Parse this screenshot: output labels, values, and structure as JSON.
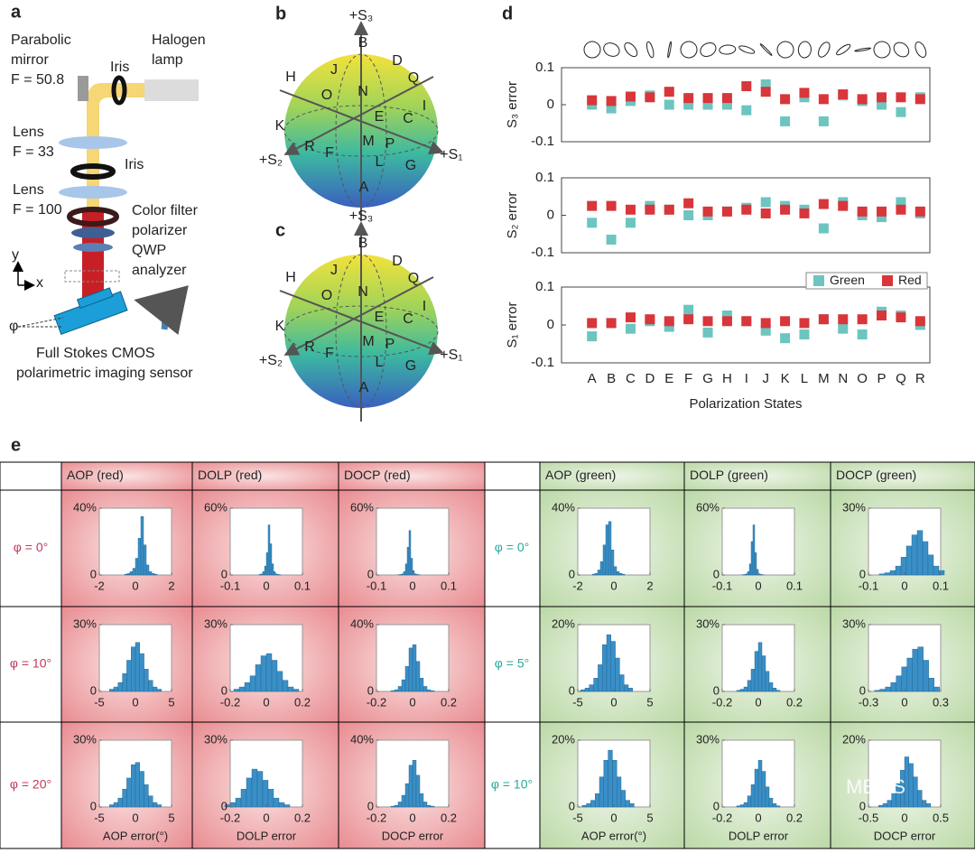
{
  "panels": [
    "a",
    "b",
    "c",
    "d",
    "e"
  ],
  "setup": {
    "labels": [
      "Parabolic",
      "mirror",
      "F = 50.8",
      "Iris",
      "Halogen",
      "lamp",
      "Lens",
      "F = 33",
      "Iris",
      "Lens",
      "F = 100",
      "Color filter",
      "polarizer",
      "QWP",
      "analyzer",
      "y",
      "x",
      "φ",
      "Full Stokes CMOS",
      "polarimetric imaging sensor"
    ]
  },
  "spheres": [
    {
      "labels": [
        "+S₃",
        "+S₂",
        "+S₁",
        "A",
        "B",
        "C",
        "D",
        "E",
        "F",
        "G",
        "H",
        "I",
        "J",
        "K",
        "L",
        "M",
        "N",
        "O",
        "P",
        "Q",
        "R"
      ]
    },
    {
      "labels": [
        "+S₃",
        "+S₂",
        "+S₁",
        "A",
        "B",
        "C",
        "D",
        "E",
        "F",
        "G",
        "H",
        "I",
        "J",
        "K",
        "L",
        "M",
        "N",
        "O",
        "P",
        "Q",
        "R"
      ]
    }
  ],
  "table": {
    "headers": [
      "AOP (red)",
      "DOLP (red)",
      "DOCP (red)",
      "AOP (green)",
      "DOLP (green)",
      "DOCP (green)"
    ],
    "row_labels": [
      "φ = 0°",
      "φ = 10°",
      "φ = 20°",
      "φ = 0°",
      "φ = 5°",
      "φ = 10°"
    ],
    "watermark": "MEMS"
  },
  "chart_data": [
    {
      "type": "scatter",
      "ylabel": "S₃ error",
      "ylim": [
        -0.1,
        0.1
      ],
      "yticks": [
        -0.1,
        0,
        0.1
      ],
      "series": [
        {
          "color": "#6cc5bf",
          "values": [
            0.0,
            -0.01,
            0.01,
            0.025,
            0.0,
            0.0,
            0.0,
            0.0,
            -0.015,
            0.055,
            -0.045,
            0.02,
            -0.045,
            0.025,
            0.01,
            0.0,
            -0.02,
            0.02
          ]
        },
        {
          "color": "#d8363a",
          "values": [
            0.012,
            0.01,
            0.022,
            0.02,
            0.035,
            0.018,
            0.018,
            0.018,
            0.05,
            0.035,
            0.015,
            0.032,
            0.015,
            0.028,
            0.015,
            0.02,
            0.02,
            0.015
          ]
        }
      ]
    },
    {
      "type": "scatter",
      "ylabel": "S₂ error",
      "ylim": [
        -0.1,
        0.1
      ],
      "yticks": [
        -0.1,
        0,
        0.1
      ],
      "series": [
        {
          "color": "#6cc5bf",
          "values": [
            -0.02,
            -0.065,
            -0.02,
            0.025,
            0.015,
            0.0,
            0.0,
            0.01,
            0.02,
            0.035,
            0.025,
            0.015,
            -0.035,
            0.035,
            0.0,
            -0.005,
            0.035,
            0.005
          ]
        },
        {
          "color": "#d8363a",
          "values": [
            0.025,
            0.025,
            0.015,
            0.015,
            0.015,
            0.032,
            0.01,
            0.01,
            0.015,
            0.005,
            0.015,
            0.005,
            0.03,
            0.025,
            0.01,
            0.01,
            0.015,
            0.01
          ]
        }
      ]
    },
    {
      "type": "scatter",
      "ylabel": "S₁ error",
      "xlabel": "Polarization States",
      "ylim": [
        -0.1,
        0.1
      ],
      "yticks": [
        -0.1,
        0,
        0.1
      ],
      "categories": [
        "A",
        "B",
        "C",
        "D",
        "E",
        "F",
        "G",
        "H",
        "I",
        "J",
        "K",
        "L",
        "M",
        "N",
        "O",
        "P",
        "Q",
        "R"
      ],
      "legend": "upper right",
      "series": [
        {
          "name": "Green",
          "color": "#6cc5bf",
          "values": [
            -0.03,
            0.005,
            -0.01,
            0.01,
            -0.005,
            0.04,
            -0.02,
            0.025,
            0.01,
            -0.015,
            -0.035,
            -0.025,
            0.015,
            -0.01,
            -0.025,
            0.035,
            0.025,
            0.0
          ]
        },
        {
          "name": "Red",
          "color": "#d8363a",
          "values": [
            0.005,
            0.005,
            0.02,
            0.015,
            0.01,
            0.015,
            0.01,
            0.01,
            0.01,
            0.005,
            0.01,
            0.005,
            0.015,
            0.015,
            0.015,
            0.025,
            0.02,
            0.01
          ]
        }
      ]
    },
    {
      "type": "histogram",
      "color": "#3a8fc7",
      "bins": [
        -0.6,
        -0.45,
        -0.3,
        -0.15,
        0,
        0.15,
        0.3,
        0.45,
        0.6,
        0.75,
        0.9,
        1.05,
        1.2
      ],
      "values": [
        0.5,
        1,
        2,
        4,
        10,
        22,
        35,
        18,
        6,
        2,
        1,
        0.5
      ],
      "xlim": [
        -2,
        2
      ],
      "xticks": [
        -2,
        0,
        2
      ],
      "ylim": [
        0,
        40
      ],
      "yticks": [
        0,
        {
          "value": 40,
          "label": "40%"
        }
      ]
    },
    {
      "type": "histogram",
      "color": "#3a8fc7",
      "bins": [
        -0.02,
        -0.015,
        -0.01,
        -0.005,
        0,
        0.005,
        0.01,
        0.015,
        0.02,
        0.025,
        0.03,
        0.035,
        0.04
      ],
      "values": [
        0.5,
        1,
        3,
        8,
        20,
        45,
        28,
        10,
        3,
        1,
        0.5,
        0.3
      ],
      "xlim": [
        -0.1,
        0.1
      ],
      "xticks": [
        -0.1,
        0,
        0.1
      ],
      "ylim": [
        0,
        60
      ],
      "yticks": [
        0,
        {
          "value": 60,
          "label": "60%"
        }
      ]
    },
    {
      "type": "histogram",
      "color": "#3a8fc7",
      "bins": [
        -0.04,
        -0.035,
        -0.03,
        -0.025,
        -0.02,
        -0.015,
        -0.01,
        -0.005,
        0,
        0.005,
        0.01,
        0.015,
        0.02
      ],
      "values": [
        0.3,
        0.5,
        1,
        3,
        10,
        25,
        40,
        15,
        4,
        1,
        0.5,
        0.3
      ],
      "xlim": [
        -0.1,
        0.1
      ],
      "xticks": [
        -0.1,
        0,
        0.1
      ],
      "ylim": [
        0,
        60
      ],
      "yticks": [
        0,
        {
          "value": 60,
          "label": "60%"
        }
      ]
    },
    {
      "type": "histogram",
      "color": "#3a8fc7",
      "bins": [
        -3.6,
        -3,
        -2.4,
        -1.8,
        -1.2,
        -0.6,
        0,
        0.6,
        1.2,
        1.8,
        2.4,
        3,
        3.6
      ],
      "values": [
        1,
        2,
        4,
        8,
        14,
        20,
        22,
        17,
        10,
        5,
        2,
        1
      ],
      "xlim": [
        -5,
        5
      ],
      "xticks": [
        -5,
        0,
        5
      ],
      "ylim": [
        0,
        30
      ],
      "yticks": [
        0,
        {
          "value": 30,
          "label": "30%"
        }
      ]
    },
    {
      "type": "histogram",
      "color": "#3a8fc7",
      "bins": [
        -0.18,
        -0.15,
        -0.12,
        -0.09,
        -0.06,
        -0.03,
        0,
        0.03,
        0.06,
        0.09,
        0.12,
        0.15,
        0.18
      ],
      "values": [
        1,
        2,
        4,
        7,
        12,
        16,
        17,
        14,
        9,
        5,
        2,
        1
      ],
      "xlim": [
        -0.2,
        0.2
      ],
      "xticks": [
        -0.2,
        0,
        0.2
      ],
      "ylim": [
        0,
        30
      ],
      "yticks": [
        0,
        {
          "value": 30,
          "label": "30%"
        }
      ]
    },
    {
      "type": "histogram",
      "color": "#3a8fc7",
      "bins": [
        -0.12,
        -0.1,
        -0.08,
        -0.06,
        -0.04,
        -0.02,
        0,
        0.02,
        0.04,
        0.06,
        0.08,
        0.1,
        0.12
      ],
      "values": [
        0.5,
        1,
        3,
        7,
        15,
        26,
        28,
        18,
        8,
        3,
        1,
        0.5
      ],
      "xlim": [
        -0.2,
        0.2
      ],
      "xticks": [
        -0.2,
        0,
        0.2
      ],
      "ylim": [
        0,
        40
      ],
      "yticks": [
        0,
        {
          "value": 40,
          "label": "40%"
        }
      ]
    },
    {
      "type": "histogram",
      "color": "#3a8fc7",
      "xlabel": "AOP error(°)",
      "bins": [
        -3.6,
        -3,
        -2.4,
        -1.8,
        -1.2,
        -0.6,
        0,
        0.6,
        1.2,
        1.8,
        2.4,
        3,
        3.6
      ],
      "values": [
        1,
        2,
        4,
        8,
        13,
        19,
        20,
        16,
        10,
        5,
        2,
        1
      ],
      "xlim": [
        -5,
        5
      ],
      "xticks": [
        -5,
        0,
        5
      ],
      "ylim": [
        0,
        30
      ],
      "yticks": [
        0,
        {
          "value": 30,
          "label": "30%"
        }
      ]
    },
    {
      "type": "histogram",
      "color": "#3a8fc7",
      "xlabel": "DOLP error",
      "bins": [
        -0.23,
        -0.2,
        -0.17,
        -0.14,
        -0.11,
        -0.08,
        -0.05,
        -0.02,
        0.01,
        0.04,
        0.07,
        0.1,
        0.13
      ],
      "values": [
        1,
        2,
        4,
        8,
        13,
        17,
        16,
        12,
        8,
        4,
        2,
        1
      ],
      "xlim": [
        -0.2,
        0.2
      ],
      "xticks": [
        -0.2,
        0,
        0.2
      ],
      "ylim": [
        0,
        30
      ],
      "yticks": [
        0,
        {
          "value": 30,
          "label": "30%"
        }
      ]
    },
    {
      "type": "histogram",
      "color": "#3a8fc7",
      "xlabel": "DOCP error",
      "bins": [
        -0.12,
        -0.1,
        -0.08,
        -0.06,
        -0.04,
        -0.02,
        0,
        0.02,
        0.04,
        0.06,
        0.08,
        0.1,
        0.12
      ],
      "values": [
        0.5,
        1,
        3,
        7,
        14,
        25,
        28,
        19,
        8,
        3,
        1,
        0.5
      ],
      "xlim": [
        -0.2,
        0.2
      ],
      "xticks": [
        -0.2,
        0,
        0.2
      ],
      "ylim": [
        0,
        40
      ],
      "yticks": [
        0,
        {
          "value": 40,
          "label": "40%"
        }
      ]
    },
    {
      "type": "histogram",
      "color": "#3a8fc7",
      "bins": [
        -1.2,
        -1.05,
        -0.9,
        -0.75,
        -0.6,
        -0.45,
        -0.3,
        -0.15,
        0,
        0.15,
        0.3,
        0.45,
        0.6
      ],
      "values": [
        0.5,
        1,
        3,
        8,
        18,
        30,
        32,
        15,
        5,
        2,
        1,
        0.5
      ],
      "xlim": [
        -2,
        2
      ],
      "xticks": [
        -2,
        0,
        2
      ],
      "ylim": [
        0,
        40
      ],
      "yticks": [
        0,
        {
          "value": 40,
          "label": "40%"
        }
      ]
    },
    {
      "type": "histogram",
      "color": "#3a8fc7",
      "bins": [
        -0.045,
        -0.04,
        -0.035,
        -0.03,
        -0.025,
        -0.02,
        -0.015,
        -0.01,
        -0.005,
        0,
        0.005,
        0.01,
        0.015
      ],
      "values": [
        0.3,
        0.5,
        1,
        3,
        10,
        30,
        45,
        20,
        5,
        1,
        0.5,
        0.3
      ],
      "xlim": [
        -0.1,
        0.1
      ],
      "xticks": [
        -0.1,
        0,
        0.1
      ],
      "ylim": [
        0,
        60
      ],
      "yticks": [
        0,
        {
          "value": 60,
          "label": "60%"
        }
      ]
    },
    {
      "type": "histogram",
      "color": "#3a8fc7",
      "bins": [
        -0.07,
        -0.055,
        -0.04,
        -0.025,
        -0.01,
        0.005,
        0.02,
        0.035,
        0.05,
        0.065,
        0.08,
        0.095,
        0.11
      ],
      "values": [
        0.5,
        1,
        2,
        4,
        8,
        13,
        18,
        20,
        15,
        9,
        4,
        2
      ],
      "xlim": [
        -0.1,
        0.1
      ],
      "xticks": [
        -0.1,
        0,
        0.1
      ],
      "ylim": [
        0,
        30
      ],
      "yticks": [
        0,
        {
          "value": 30,
          "label": "30%"
        }
      ]
    },
    {
      "type": "histogram",
      "color": "#3a8fc7",
      "bins": [
        -4.6,
        -4,
        -3.4,
        -2.8,
        -2.2,
        -1.6,
        -1,
        -0.4,
        0.2,
        0.8,
        1.4,
        2,
        2.6
      ],
      "values": [
        0.5,
        1,
        2,
        4,
        8,
        14,
        17,
        15,
        10,
        5,
        2,
        1
      ],
      "xlim": [
        -5,
        5
      ],
      "xticks": [
        -5,
        0,
        5
      ],
      "ylim": [
        0,
        20
      ],
      "yticks": [
        0,
        {
          "value": 20,
          "label": "20%"
        }
      ]
    },
    {
      "type": "histogram",
      "color": "#3a8fc7",
      "bins": [
        -0.12,
        -0.1,
        -0.08,
        -0.06,
        -0.04,
        -0.02,
        0,
        0.02,
        0.04,
        0.06,
        0.08,
        0.1,
        0.12
      ],
      "values": [
        0.5,
        1,
        2,
        5,
        10,
        18,
        22,
        16,
        9,
        4,
        1.5,
        0.5
      ],
      "xlim": [
        -0.2,
        0.2
      ],
      "xticks": [
        -0.2,
        0,
        0.2
      ],
      "ylim": [
        0,
        30
      ],
      "yticks": [
        0,
        {
          "value": 30,
          "label": "30%"
        }
      ]
    },
    {
      "type": "histogram",
      "color": "#3a8fc7",
      "bins": [
        -0.25,
        -0.205,
        -0.16,
        -0.115,
        -0.07,
        -0.025,
        0.02,
        0.065,
        0.11,
        0.155,
        0.2,
        0.245,
        0.29
      ],
      "values": [
        0.5,
        1,
        2,
        4,
        7,
        11,
        15,
        19,
        20,
        14,
        6,
        2
      ],
      "xlim": [
        -0.3,
        0.3
      ],
      "xticks": [
        -0.3,
        0,
        0.3
      ],
      "ylim": [
        0,
        30
      ],
      "yticks": [
        0,
        {
          "value": 30,
          "label": "30%"
        }
      ]
    },
    {
      "type": "histogram",
      "color": "#3a8fc7",
      "xlabel": "AOP error(°)",
      "bins": [
        -4.4,
        -3.8,
        -3.2,
        -2.6,
        -2,
        -1.4,
        -0.8,
        -0.2,
        0.4,
        1,
        1.6,
        2.2,
        2.8
      ],
      "values": [
        0.5,
        1,
        2,
        4,
        9,
        14,
        17,
        14,
        9,
        5,
        2,
        1
      ],
      "xlim": [
        -5,
        5
      ],
      "xticks": [
        -5,
        0,
        5
      ],
      "ylim": [
        0,
        20
      ],
      "yticks": [
        0,
        {
          "value": 20,
          "label": "20%"
        }
      ]
    },
    {
      "type": "histogram",
      "color": "#3a8fc7",
      "xlabel": "DOLP error",
      "bins": [
        -0.12,
        -0.1,
        -0.08,
        -0.06,
        -0.04,
        -0.02,
        0,
        0.02,
        0.04,
        0.06,
        0.08,
        0.1,
        0.12
      ],
      "values": [
        0.5,
        1,
        2,
        5,
        10,
        17,
        21,
        16,
        9,
        4,
        1.5,
        0.5
      ],
      "xlim": [
        -0.2,
        0.2
      ],
      "xticks": [
        -0.2,
        0,
        0.2
      ],
      "ylim": [
        0,
        30
      ],
      "yticks": [
        0,
        {
          "value": 30,
          "label": "30%"
        }
      ]
    },
    {
      "type": "histogram",
      "color": "#3a8fc7",
      "xlabel": "DOCP error",
      "bins": [
        -0.36,
        -0.3,
        -0.24,
        -0.18,
        -0.12,
        -0.06,
        0,
        0.06,
        0.12,
        0.18,
        0.24,
        0.3,
        0.36
      ],
      "values": [
        0.5,
        1,
        2,
        4,
        7,
        11,
        15,
        13,
        9,
        5,
        2,
        1
      ],
      "xlim": [
        -0.5,
        0.5
      ],
      "xticks": [
        -0.5,
        0,
        0.5
      ],
      "ylim": [
        0,
        20
      ],
      "yticks": [
        0,
        {
          "value": 20,
          "label": "20%"
        }
      ]
    }
  ]
}
